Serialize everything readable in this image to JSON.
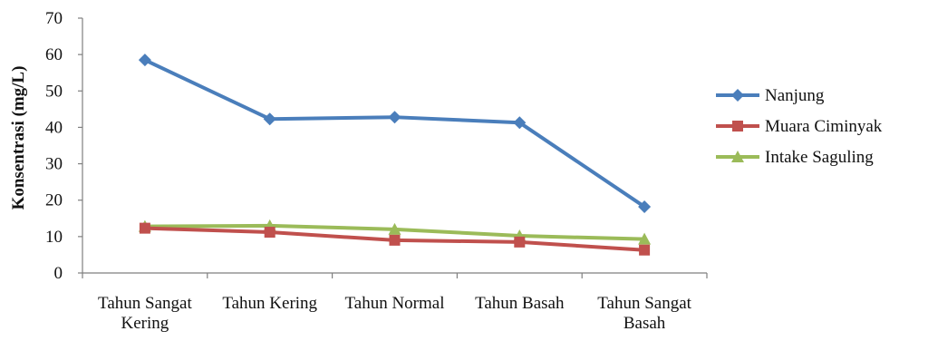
{
  "chart_data": {
    "type": "line",
    "title": "",
    "xlabel": "",
    "ylabel": "Konsentrasi (mg/L)",
    "ylim": [
      0,
      70
    ],
    "yticks": [
      0,
      10,
      20,
      30,
      40,
      50,
      60,
      70
    ],
    "grid": false,
    "legend_position": "right",
    "categories": [
      [
        "Tahun Sangat",
        "Kering"
      ],
      [
        "Tahun Kering"
      ],
      [
        "Tahun Normal"
      ],
      [
        "Tahun Basah"
      ],
      [
        "Tahun Sangat",
        "Basah"
      ]
    ],
    "series": [
      {
        "name": "Nanjung",
        "color": "#4a7ebb",
        "marker": "diamond",
        "values": [
          58.5,
          42.3,
          42.8,
          41.3,
          18.2
        ]
      },
      {
        "name": "Muara Ciminyak",
        "color": "#c0504d",
        "marker": "square",
        "values": [
          12.3,
          11.2,
          9.0,
          8.5,
          6.3
        ]
      },
      {
        "name": "Intake Saguling",
        "color": "#9bbb59",
        "marker": "triangle",
        "values": [
          12.8,
          13.0,
          12.0,
          10.2,
          9.3
        ]
      }
    ]
  }
}
